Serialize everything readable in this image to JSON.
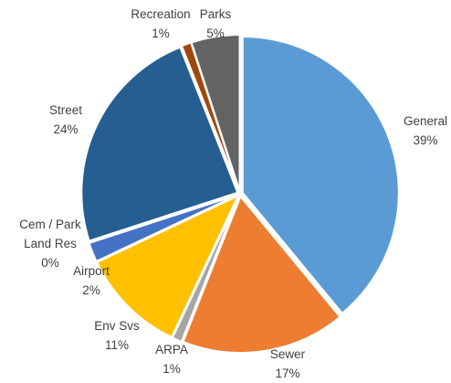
{
  "chart_data": {
    "type": "pie",
    "categories": [
      "General",
      "Sewer",
      "ARPA",
      "Env Svs",
      "Airport",
      "Cem / Park Land Res",
      "Street",
      "Recreation",
      "Parks"
    ],
    "values": [
      39,
      17,
      1,
      11,
      2,
      0,
      24,
      1,
      5
    ],
    "value_labels": [
      "39%",
      "17%",
      "1%",
      "11%",
      "2%",
      "0%",
      "24%",
      "1%",
      "5%"
    ],
    "colors": [
      "#5b9bd5",
      "#ed7d31",
      "#a5a5a5",
      "#ffc000",
      "#4472c4",
      "#70ad47",
      "#255e91",
      "#9e480e",
      "#636363"
    ]
  }
}
